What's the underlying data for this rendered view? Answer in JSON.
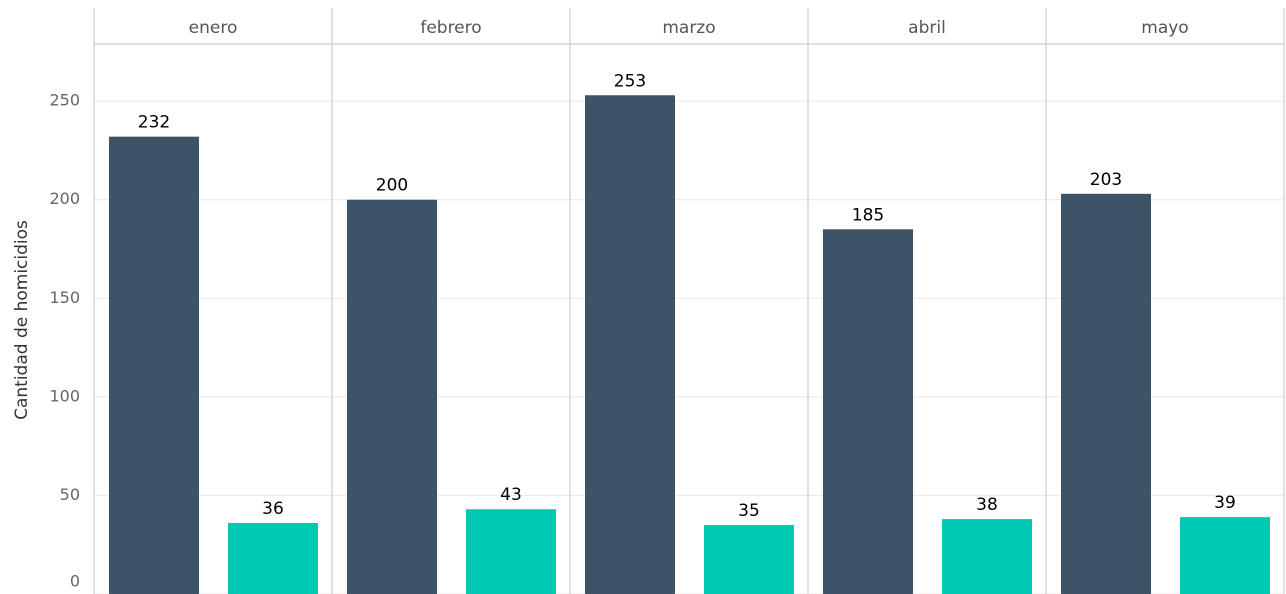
{
  "chart_data": {
    "type": "bar",
    "y_label": "Cantidad de homicidios",
    "categories": [
      "enero",
      "febrero",
      "marzo",
      "abril",
      "mayo"
    ],
    "series": [
      {
        "color": "#3d5366",
        "values": [
          232,
          200,
          253,
          185,
          203
        ]
      },
      {
        "color": "#00c9b1",
        "values": [
          36,
          43,
          35,
          38,
          39
        ]
      }
    ],
    "ylim": [
      0,
      279
    ],
    "yticks": [
      0,
      50,
      100,
      150,
      200,
      250
    ],
    "grid": true
  }
}
